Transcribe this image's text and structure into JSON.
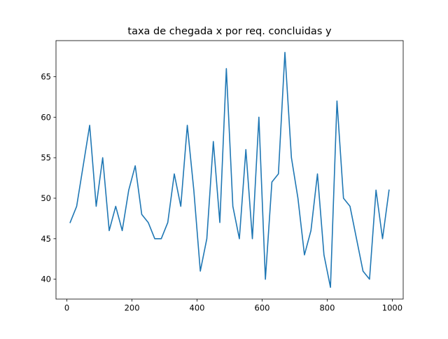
{
  "chart_data": {
    "type": "line",
    "title": "taxa de chegada x por req. concluidas y",
    "xlabel": "",
    "ylabel": "",
    "xlim": [
      -33.5,
      1033.5
    ],
    "ylim": [
      37.55,
      69.45
    ],
    "xticks": [
      0,
      200,
      400,
      600,
      800,
      1000
    ],
    "xtick_labels": [
      "0",
      "200",
      "400",
      "600",
      "800",
      "1000"
    ],
    "yticks": [
      40,
      45,
      50,
      55,
      60,
      65
    ],
    "ytick_labels": [
      "40",
      "45",
      "50",
      "55",
      "60",
      "65"
    ],
    "grid": false,
    "line_color": "#1f77b4",
    "series": [
      {
        "x": [
          10,
          30,
          50,
          70,
          90,
          110,
          130,
          150,
          170,
          190,
          210,
          230,
          250,
          270,
          290,
          310,
          330,
          350,
          370,
          390,
          410,
          430,
          450,
          470,
          490,
          510,
          530,
          550,
          570,
          590,
          610,
          630,
          650,
          670,
          690,
          710,
          730,
          750,
          770,
          790,
          810,
          830,
          850,
          870,
          890,
          910,
          930,
          950,
          970,
          990
        ],
        "y": [
          47,
          49,
          54,
          59,
          49,
          55,
          46,
          49,
          46,
          51,
          54,
          48,
          47,
          45,
          45,
          47,
          53,
          49,
          59,
          51,
          41,
          45,
          57,
          47,
          66,
          49,
          45,
          56,
          45,
          60,
          40,
          52,
          53,
          68,
          55,
          50,
          43,
          46,
          53,
          43,
          39,
          62,
          50,
          49,
          45,
          41,
          40,
          51,
          45,
          51
        ]
      }
    ]
  }
}
